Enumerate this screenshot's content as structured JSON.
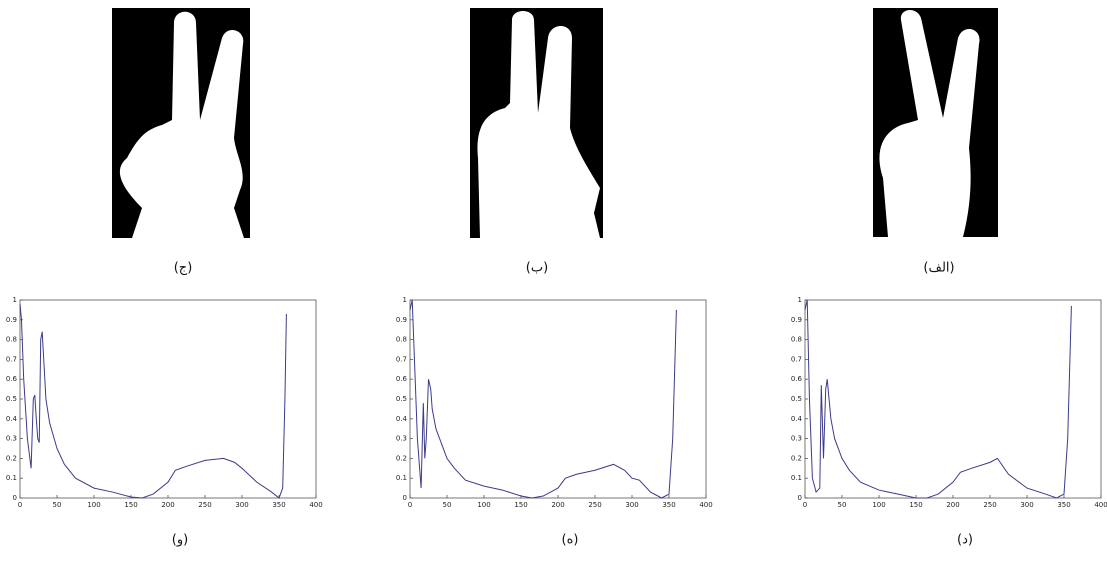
{
  "image_captions": [
    "(ج)",
    "(ب)",
    "(الف)"
  ],
  "chart_data": [
    {
      "type": "line",
      "caption": "(و)",
      "color": "#3b3b8a",
      "x": [
        0,
        2,
        5,
        10,
        15,
        18,
        20,
        22,
        24,
        26,
        28,
        30,
        35,
        40,
        50,
        60,
        75,
        100,
        125,
        150,
        165,
        180,
        200,
        210,
        225,
        250,
        275,
        290,
        300,
        320,
        340,
        350,
        355,
        358,
        360
      ],
      "values": [
        0.98,
        0.9,
        0.6,
        0.3,
        0.15,
        0.5,
        0.52,
        0.4,
        0.3,
        0.28,
        0.8,
        0.84,
        0.5,
        0.38,
        0.25,
        0.17,
        0.1,
        0.05,
        0.03,
        0.005,
        0,
        0.02,
        0.08,
        0.14,
        0.16,
        0.19,
        0.2,
        0.18,
        0.15,
        0.08,
        0.03,
        0,
        0.05,
        0.5,
        0.93
      ],
      "xlim": [
        0,
        400
      ],
      "xticks": [
        0,
        50,
        100,
        150,
        200,
        250,
        300,
        350,
        400
      ],
      "ylim": [
        0,
        1
      ],
      "yticks": [
        0,
        0.1,
        0.2,
        0.3,
        0.4,
        0.5,
        0.6,
        0.7,
        0.8,
        0.9,
        1
      ]
    },
    {
      "type": "line",
      "caption": "(ه)",
      "color": "#3b3b8a",
      "x": [
        0,
        3,
        6,
        10,
        15,
        18,
        20,
        22,
        25,
        28,
        30,
        35,
        40,
        50,
        60,
        75,
        100,
        125,
        150,
        165,
        180,
        200,
        210,
        225,
        250,
        275,
        290,
        300,
        310,
        325,
        340,
        350,
        355,
        360
      ],
      "values": [
        0.95,
        1,
        0.7,
        0.3,
        0.05,
        0.48,
        0.2,
        0.3,
        0.6,
        0.55,
        0.45,
        0.35,
        0.3,
        0.2,
        0.15,
        0.09,
        0.06,
        0.04,
        0.01,
        0,
        0.01,
        0.05,
        0.1,
        0.12,
        0.14,
        0.17,
        0.14,
        0.1,
        0.09,
        0.03,
        0,
        0.02,
        0.3,
        0.95
      ],
      "xlim": [
        0,
        400
      ],
      "xticks": [
        0,
        50,
        100,
        150,
        200,
        250,
        300,
        350,
        400
      ],
      "ylim": [
        0,
        1
      ],
      "yticks": [
        0,
        0.1,
        0.2,
        0.3,
        0.4,
        0.5,
        0.6,
        0.7,
        0.8,
        0.9,
        1
      ]
    },
    {
      "type": "line",
      "caption": "(د)",
      "color": "#3b3b8a",
      "x": [
        0,
        3,
        6,
        10,
        15,
        20,
        22,
        25,
        28,
        30,
        35,
        40,
        50,
        60,
        75,
        100,
        125,
        150,
        165,
        180,
        200,
        210,
        225,
        250,
        260,
        275,
        300,
        325,
        340,
        350,
        355,
        360
      ],
      "values": [
        0.95,
        1,
        0.5,
        0.1,
        0.03,
        0.05,
        0.57,
        0.2,
        0.55,
        0.6,
        0.4,
        0.3,
        0.2,
        0.14,
        0.08,
        0.04,
        0.02,
        0,
        0,
        0.02,
        0.08,
        0.13,
        0.15,
        0.18,
        0.2,
        0.12,
        0.05,
        0.02,
        0,
        0.02,
        0.3,
        0.97
      ],
      "xlim": [
        0,
        400
      ],
      "xticks": [
        0,
        50,
        100,
        150,
        200,
        250,
        300,
        350,
        400
      ],
      "ylim": [
        0,
        1
      ],
      "yticks": [
        0,
        0.1,
        0.2,
        0.3,
        0.4,
        0.5,
        0.6,
        0.7,
        0.8,
        0.9,
        1
      ]
    }
  ]
}
